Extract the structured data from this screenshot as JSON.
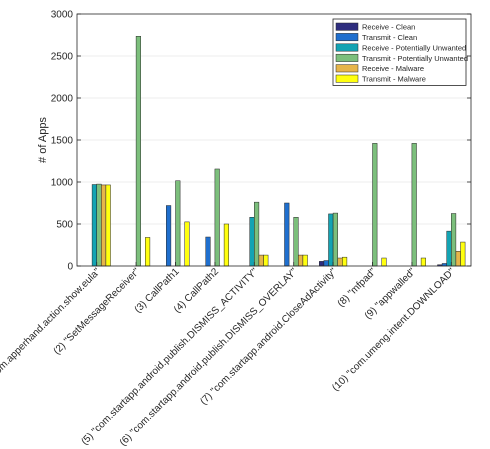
{
  "chart_data": {
    "type": "bar",
    "title": "",
    "xlabel": "",
    "ylabel": "# of Apps",
    "ylim": [
      0,
      3000
    ],
    "yticks": [
      0,
      500,
      1000,
      1500,
      2000,
      2500,
      3000
    ],
    "grid": "y-major",
    "legend_position": "top-right",
    "categories": [
      "(1) \"com.apperhand.action.show.eula\"",
      "(2) \"SetMessageReceiver\"",
      "(3) CallPath1",
      "(4) CallPath2",
      "(5) \"com.startapp.android.publish.DISMISS_ACTIVITY\"",
      "(6) \"com.startapp.android.publish.DISMISS_OVERLAY\"",
      "(7) \"com.startapp.android.CloseAdActivity\"",
      "(8) \"mfpad\"",
      "(9) \"appwalled\"",
      "(10) \"com.umeng.intent.DOWNLOAD\""
    ],
    "series": [
      {
        "name": "Receive - Clean",
        "color": "#2e2d7e",
        "values": [
          0,
          0,
          0,
          0,
          0,
          0,
          55,
          0,
          0,
          15
        ]
      },
      {
        "name": "Transmit - Clean",
        "color": "#1f6fce",
        "values": [
          0,
          0,
          720,
          345,
          0,
          750,
          65,
          0,
          0,
          30
        ]
      },
      {
        "name": "Receive - Potentially Unwanted",
        "color": "#13a3b3",
        "values": [
          970,
          0,
          0,
          0,
          580,
          0,
          620,
          0,
          0,
          415
        ]
      },
      {
        "name": "Transmit - Potentially Unwanted",
        "color": "#7cbf7c",
        "values": [
          975,
          2735,
          1015,
          1155,
          760,
          580,
          630,
          1460,
          1460,
          625
        ]
      },
      {
        "name": "Receive - Malware",
        "color": "#e6b54a",
        "values": [
          965,
          0,
          0,
          0,
          130,
          130,
          95,
          0,
          0,
          175
        ]
      },
      {
        "name": "Transmit - Malware",
        "color": "#ffff0f",
        "values": [
          965,
          340,
          525,
          500,
          130,
          130,
          105,
          95,
          95,
          285
        ]
      }
    ]
  }
}
